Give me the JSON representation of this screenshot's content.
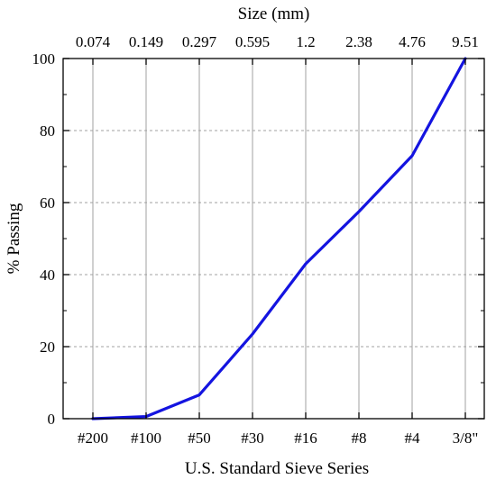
{
  "chart_data": {
    "type": "line",
    "title": "",
    "xlabel": "U.S. Standard Sieve Series",
    "x2label": "Size (mm)",
    "ylabel": "% Passing",
    "categories": [
      "#200",
      "#100",
      "#50",
      "#30",
      "#16",
      "#8",
      "#4",
      "3/8\""
    ],
    "top_categories": [
      "0.074",
      "0.149",
      "0.297",
      "0.595",
      "1.2",
      "2.38",
      "4.76",
      "9.51"
    ],
    "series": [
      {
        "values": [
          0,
          0.6,
          6.6,
          23.5,
          43,
          57.5,
          73,
          100
        ],
        "color": "#1414e0"
      }
    ],
    "ylim": [
      0,
      100
    ],
    "yticks": [
      "0",
      "20",
      "40",
      "60",
      "80",
      "100"
    ],
    "grid": true,
    "x_grid_color": "#a0a0a0",
    "y_grid_color": "#a0a0a0"
  }
}
